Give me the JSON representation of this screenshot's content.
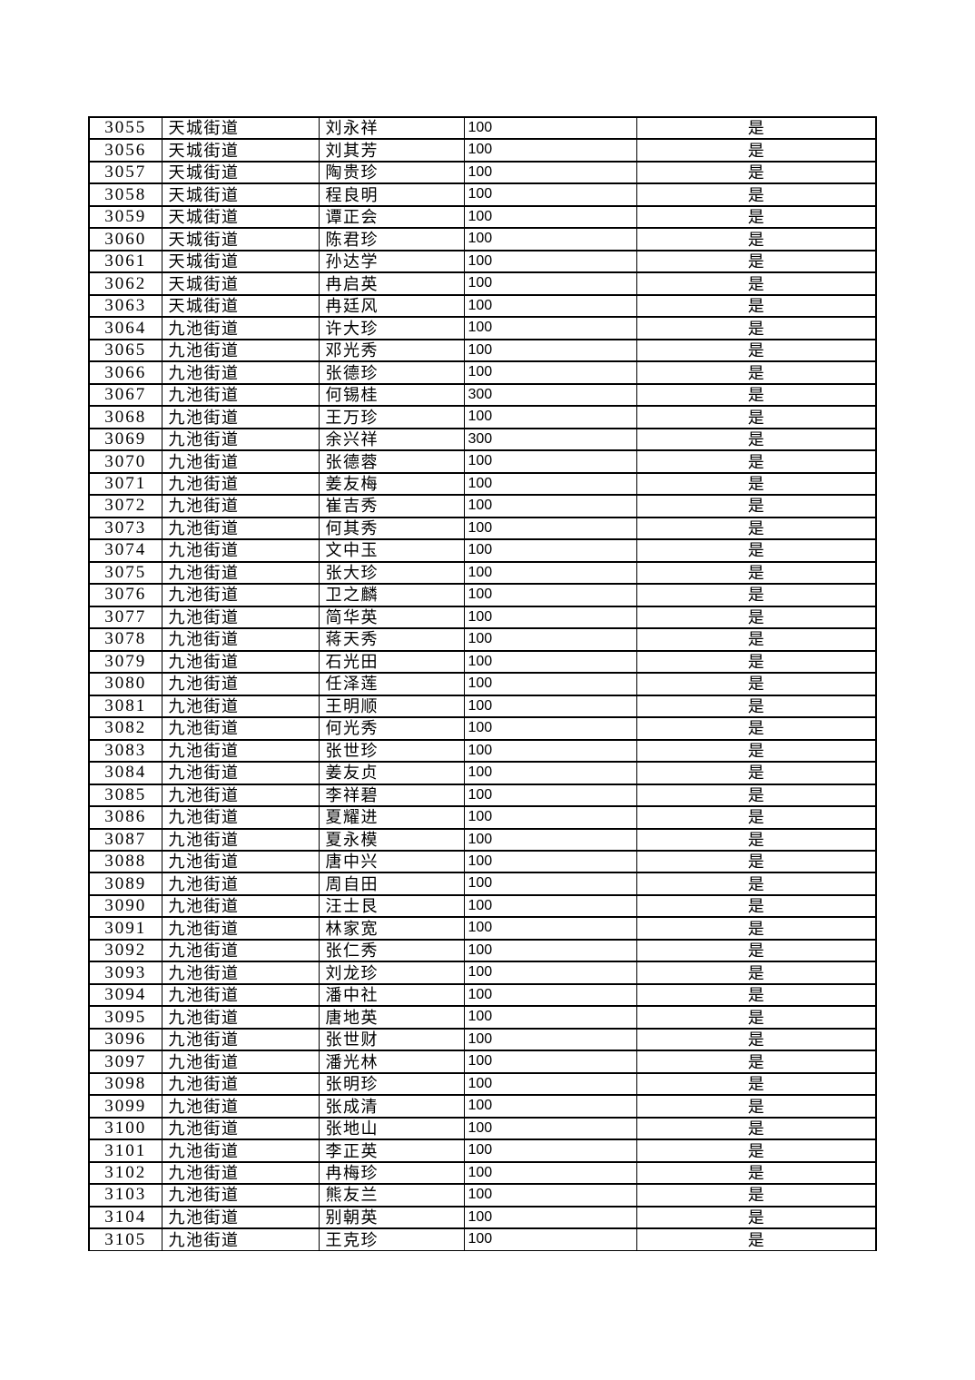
{
  "styles": {
    "background": "#ffffff",
    "border_color": "#000000",
    "text_color": "#000000"
  },
  "table": {
    "rows": [
      {
        "id": "3055",
        "street": "天城街道",
        "name": "刘永祥",
        "amount": "100",
        "confirmed": "是"
      },
      {
        "id": "3056",
        "street": "天城街道",
        "name": "刘其芳",
        "amount": "100",
        "confirmed": "是"
      },
      {
        "id": "3057",
        "street": "天城街道",
        "name": "陶贵珍",
        "amount": "100",
        "confirmed": "是"
      },
      {
        "id": "3058",
        "street": "天城街道",
        "name": "程良明",
        "amount": "100",
        "confirmed": "是"
      },
      {
        "id": "3059",
        "street": "天城街道",
        "name": "谭正会",
        "amount": "100",
        "confirmed": "是"
      },
      {
        "id": "3060",
        "street": "天城街道",
        "name": "陈君珍",
        "amount": "100",
        "confirmed": "是"
      },
      {
        "id": "3061",
        "street": "天城街道",
        "name": "孙达学",
        "amount": "100",
        "confirmed": "是"
      },
      {
        "id": "3062",
        "street": "天城街道",
        "name": "冉启英",
        "amount": "100",
        "confirmed": "是"
      },
      {
        "id": "3063",
        "street": "天城街道",
        "name": "冉廷风",
        "amount": "100",
        "confirmed": "是"
      },
      {
        "id": "3064",
        "street": "九池街道",
        "name": "许大珍",
        "amount": "100",
        "confirmed": "是"
      },
      {
        "id": "3065",
        "street": "九池街道",
        "name": "邓光秀",
        "amount": "100",
        "confirmed": "是"
      },
      {
        "id": "3066",
        "street": "九池街道",
        "name": "张德珍",
        "amount": "100",
        "confirmed": "是"
      },
      {
        "id": "3067",
        "street": "九池街道",
        "name": "何锡桂",
        "amount": "300",
        "confirmed": "是"
      },
      {
        "id": "3068",
        "street": "九池街道",
        "name": "王万珍",
        "amount": "100",
        "confirmed": "是"
      },
      {
        "id": "3069",
        "street": "九池街道",
        "name": "余兴祥",
        "amount": "300",
        "confirmed": "是"
      },
      {
        "id": "3070",
        "street": "九池街道",
        "name": "张德蓉",
        "amount": "100",
        "confirmed": "是"
      },
      {
        "id": "3071",
        "street": "九池街道",
        "name": "姜友梅",
        "amount": "100",
        "confirmed": "是"
      },
      {
        "id": "3072",
        "street": "九池街道",
        "name": "崔吉秀",
        "amount": "100",
        "confirmed": "是"
      },
      {
        "id": "3073",
        "street": "九池街道",
        "name": "何其秀",
        "amount": "100",
        "confirmed": "是"
      },
      {
        "id": "3074",
        "street": "九池街道",
        "name": "文中玉",
        "amount": "100",
        "confirmed": "是"
      },
      {
        "id": "3075",
        "street": "九池街道",
        "name": "张大珍",
        "amount": "100",
        "confirmed": "是"
      },
      {
        "id": "3076",
        "street": "九池街道",
        "name": "卫之麟",
        "amount": "100",
        "confirmed": "是"
      },
      {
        "id": "3077",
        "street": "九池街道",
        "name": "简华英",
        "amount": "100",
        "confirmed": "是"
      },
      {
        "id": "3078",
        "street": "九池街道",
        "name": "蒋天秀",
        "amount": "100",
        "confirmed": "是"
      },
      {
        "id": "3079",
        "street": "九池街道",
        "name": "石光田",
        "amount": "100",
        "confirmed": "是"
      },
      {
        "id": "3080",
        "street": "九池街道",
        "name": "任泽莲",
        "amount": "100",
        "confirmed": "是"
      },
      {
        "id": "3081",
        "street": "九池街道",
        "name": "王明顺",
        "amount": "100",
        "confirmed": "是"
      },
      {
        "id": "3082",
        "street": "九池街道",
        "name": "何光秀",
        "amount": "100",
        "confirmed": "是"
      },
      {
        "id": "3083",
        "street": "九池街道",
        "name": "张世珍",
        "amount": "100",
        "confirmed": "是"
      },
      {
        "id": "3084",
        "street": "九池街道",
        "name": "姜友贞",
        "amount": "100",
        "confirmed": "是"
      },
      {
        "id": "3085",
        "street": "九池街道",
        "name": "李祥碧",
        "amount": "100",
        "confirmed": "是"
      },
      {
        "id": "3086",
        "street": "九池街道",
        "name": "夏耀进",
        "amount": "100",
        "confirmed": "是"
      },
      {
        "id": "3087",
        "street": "九池街道",
        "name": "夏永模",
        "amount": "100",
        "confirmed": "是"
      },
      {
        "id": "3088",
        "street": "九池街道",
        "name": "唐中兴",
        "amount": "100",
        "confirmed": "是"
      },
      {
        "id": "3089",
        "street": "九池街道",
        "name": "周自田",
        "amount": "100",
        "confirmed": "是"
      },
      {
        "id": "3090",
        "street": "九池街道",
        "name": "汪士艮",
        "amount": "100",
        "confirmed": "是"
      },
      {
        "id": "3091",
        "street": "九池街道",
        "name": "林家宽",
        "amount": "100",
        "confirmed": "是"
      },
      {
        "id": "3092",
        "street": "九池街道",
        "name": "张仁秀",
        "amount": "100",
        "confirmed": "是"
      },
      {
        "id": "3093",
        "street": "九池街道",
        "name": "刘龙珍",
        "amount": "100",
        "confirmed": "是"
      },
      {
        "id": "3094",
        "street": "九池街道",
        "name": "潘中社",
        "amount": "100",
        "confirmed": "是"
      },
      {
        "id": "3095",
        "street": "九池街道",
        "name": "唐地英",
        "amount": "100",
        "confirmed": "是"
      },
      {
        "id": "3096",
        "street": "九池街道",
        "name": "张世财",
        "amount": "100",
        "confirmed": "是"
      },
      {
        "id": "3097",
        "street": "九池街道",
        "name": "潘光林",
        "amount": "100",
        "confirmed": "是"
      },
      {
        "id": "3098",
        "street": "九池街道",
        "name": "张明珍",
        "amount": "100",
        "confirmed": "是"
      },
      {
        "id": "3099",
        "street": "九池街道",
        "name": "张成清",
        "amount": "100",
        "confirmed": "是"
      },
      {
        "id": "3100",
        "street": "九池街道",
        "name": "张地山",
        "amount": "100",
        "confirmed": "是"
      },
      {
        "id": "3101",
        "street": "九池街道",
        "name": "李正英",
        "amount": "100",
        "confirmed": "是"
      },
      {
        "id": "3102",
        "street": "九池街道",
        "name": "冉梅珍",
        "amount": "100",
        "confirmed": "是"
      },
      {
        "id": "3103",
        "street": "九池街道",
        "name": "熊友兰",
        "amount": "100",
        "confirmed": "是"
      },
      {
        "id": "3104",
        "street": "九池街道",
        "name": "别朝英",
        "amount": "100",
        "confirmed": "是"
      },
      {
        "id": "3105",
        "street": "九池街道",
        "name": "王克珍",
        "amount": "100",
        "confirmed": "是"
      }
    ]
  }
}
